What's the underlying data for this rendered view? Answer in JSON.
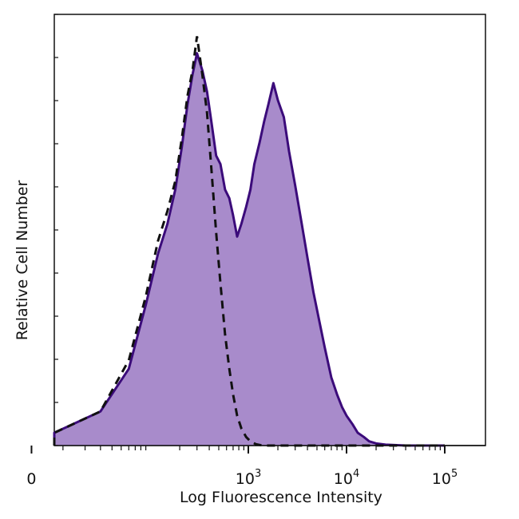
{
  "chart_data": {
    "type": "area",
    "xlabel": "Log Fluorescence Intensity",
    "ylabel": "Relative Cell Number",
    "x_scale": "biexponential",
    "x_ticks": [
      {
        "value": 0,
        "base": "0",
        "exp": ""
      },
      {
        "value": 1000,
        "base": "10",
        "exp": "3"
      },
      {
        "value": 10000,
        "base": "10",
        "exp": "4"
      },
      {
        "value": 100000,
        "base": "10",
        "exp": "5"
      }
    ],
    "ylim": [
      0,
      100
    ],
    "grid": false,
    "legend": "none",
    "colors": {
      "stained_fill": "#a88bcb",
      "stained_line": "#3b0b7a",
      "control_line": "#111111"
    },
    "series": [
      {
        "role": "stained-filled-histogram",
        "x": [
          -150,
          -80,
          -20,
          0,
          30,
          60,
          90,
          120,
          150,
          180,
          210,
          240,
          270,
          300,
          340,
          380,
          420,
          470,
          520,
          580,
          640,
          700,
          770,
          850,
          950,
          1050,
          1150,
          1300,
          1450,
          1600,
          1800,
          2000,
          2300,
          2600,
          3000,
          3500,
          4000,
          4600,
          5300,
          6000,
          7000,
          8000,
          9000,
          10000,
          11500,
          13000,
          15000,
          17000,
          20000,
          25000,
          40000,
          100000
        ],
        "y": [
          0,
          0.5,
          2,
          3,
          8,
          18,
          33,
          45,
          52,
          60,
          70,
          80,
          87,
          92,
          88,
          83,
          76,
          68,
          66,
          60,
          58,
          54,
          49,
          52,
          56,
          60,
          66,
          71,
          76,
          80,
          85,
          81,
          77,
          69,
          61,
          52,
          44,
          36,
          29,
          23,
          16,
          12,
          9,
          7,
          5,
          3,
          2,
          1,
          0.5,
          0.2,
          0,
          0
        ]
      },
      {
        "role": "control-dashed-histogram",
        "x": [
          -150,
          -80,
          -20,
          0,
          30,
          60,
          90,
          120,
          150,
          180,
          210,
          240,
          270,
          300,
          340,
          380,
          420,
          470,
          520,
          580,
          640,
          700,
          770,
          850,
          950,
          1050,
          1200,
          1400,
          2000,
          100000
        ],
        "y": [
          0,
          0.5,
          2,
          3,
          8,
          20,
          35,
          48,
          55,
          62,
          72,
          82,
          88,
          96,
          87,
          78,
          65,
          50,
          38,
          26,
          18,
          12,
          7,
          4,
          2,
          1,
          0.3,
          0,
          0,
          0
        ]
      }
    ]
  }
}
